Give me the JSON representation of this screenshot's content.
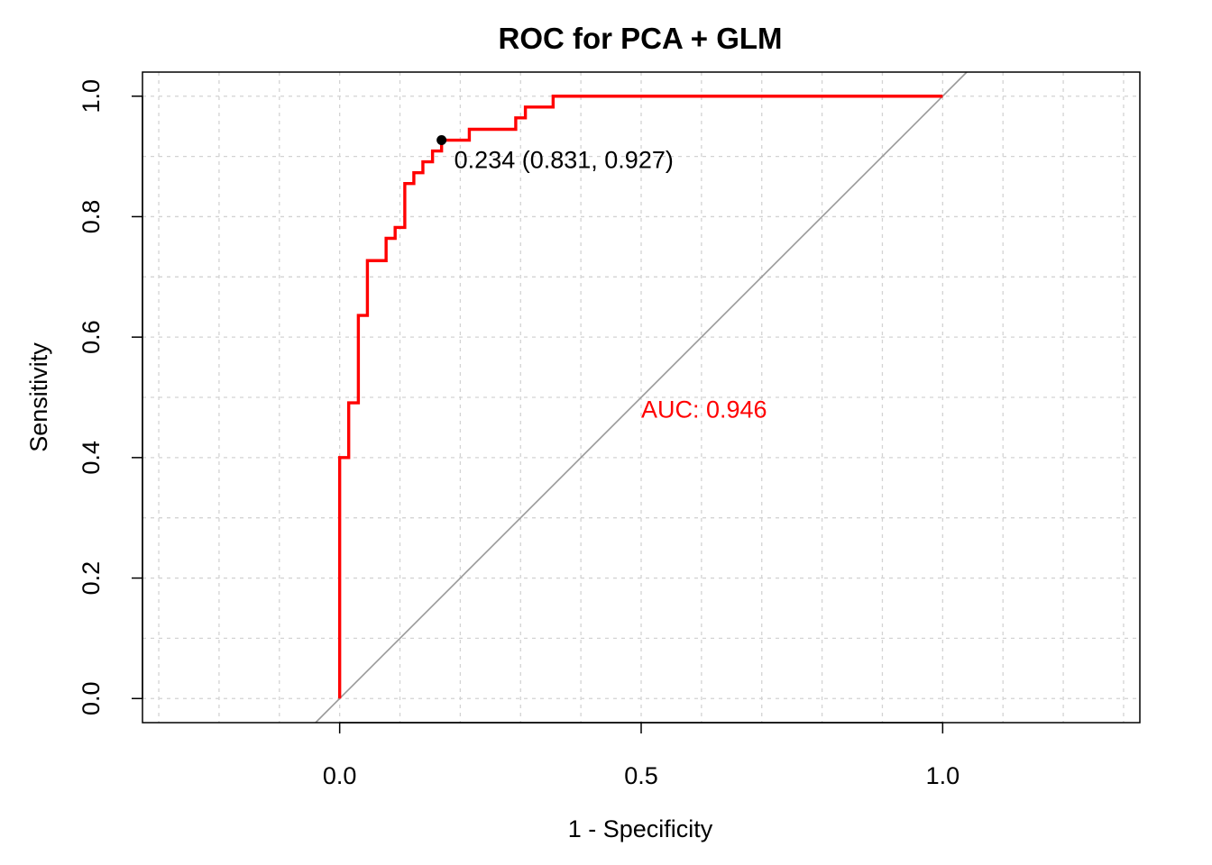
{
  "chart_data": {
    "type": "line",
    "title": "ROC for PCA + GLM",
    "xlabel": "1 - Specificity",
    "ylabel": "Sensitivity",
    "xlim": [
      -0.327,
      1.327
    ],
    "ylim": [
      -0.04,
      1.04
    ],
    "x_ticks": [
      0.0,
      0.5,
      1.0
    ],
    "x_tick_labels": [
      "0.0",
      "0.5",
      "1.0"
    ],
    "y_ticks": [
      0.0,
      0.2,
      0.4,
      0.6,
      0.8,
      1.0
    ],
    "y_tick_labels": [
      "0.0",
      "0.2",
      "0.4",
      "0.6",
      "0.8",
      "1.0"
    ],
    "grid": true,
    "colors": {
      "roc": "#ff0000",
      "diagonal": "#999999",
      "grid": "#d3d3d3",
      "point": "#000000",
      "auc_text": "#ff0000"
    },
    "series": [
      {
        "values_note": "",
        "x": [
          0.0,
          0.0,
          0.015,
          0.015,
          0.031,
          0.031,
          0.046,
          0.046,
          0.077,
          0.077,
          0.092,
          0.092,
          0.108,
          0.108,
          0.123,
          0.123,
          0.138,
          0.138,
          0.154,
          0.154,
          0.169,
          0.169,
          0.215,
          0.215,
          0.292,
          0.292,
          0.308,
          0.308,
          0.354,
          0.354,
          1.0
        ],
        "y": [
          0.0,
          0.4,
          0.4,
          0.491,
          0.491,
          0.636,
          0.636,
          0.727,
          0.727,
          0.764,
          0.764,
          0.782,
          0.782,
          0.855,
          0.855,
          0.873,
          0.873,
          0.891,
          0.891,
          0.909,
          0.909,
          0.927,
          0.927,
          0.945,
          0.945,
          0.964,
          0.964,
          0.982,
          0.982,
          1.0,
          1.0
        ]
      }
    ],
    "diagonal": {
      "x": [
        -0.04,
        1.04
      ],
      "y": [
        -0.04,
        1.04
      ]
    },
    "threshold_point": {
      "x": 0.169,
      "y": 0.927,
      "label": "0.234 (0.831, 0.927)"
    },
    "auc_label": {
      "text": "AUC: 0.946",
      "x": 0.5,
      "y": 0.48
    }
  }
}
